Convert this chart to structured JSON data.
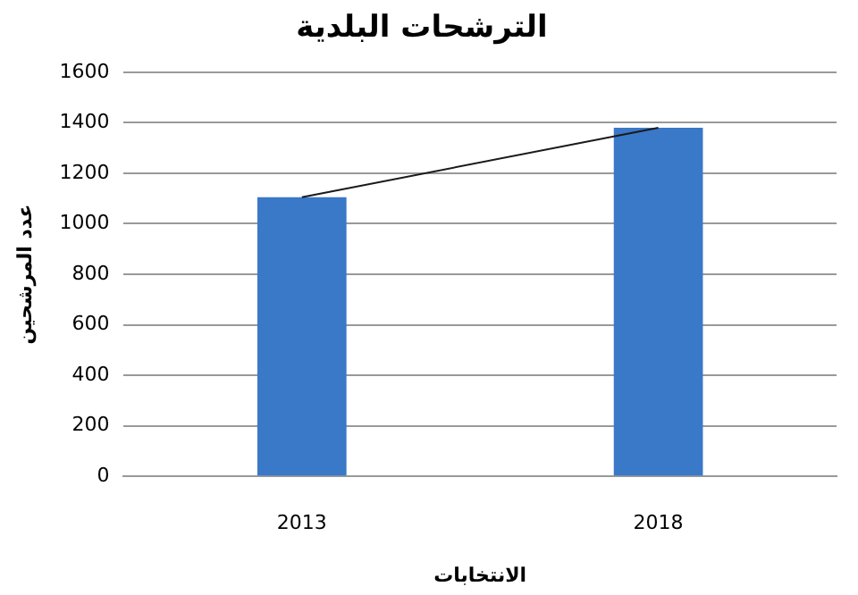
{
  "chart_data": {
    "type": "bar",
    "title": "الترشحات البلدية",
    "xlabel": "الانتخابات",
    "ylabel": "عدد المرشحين",
    "categories": [
      "2013",
      "2018"
    ],
    "series": [
      {
        "color": "#3a78c8",
        "values": [
          1105,
          1380
        ]
      },
      {
        "type": "line",
        "color": "#1a1a1a",
        "values": [
          1105,
          1380
        ]
      }
    ],
    "ylim": [
      0,
      1600
    ],
    "yticks": [
      0,
      200,
      400,
      600,
      800,
      1000,
      1200,
      1400,
      1600
    ],
    "grid": "y",
    "legend": false,
    "marker": "none"
  }
}
